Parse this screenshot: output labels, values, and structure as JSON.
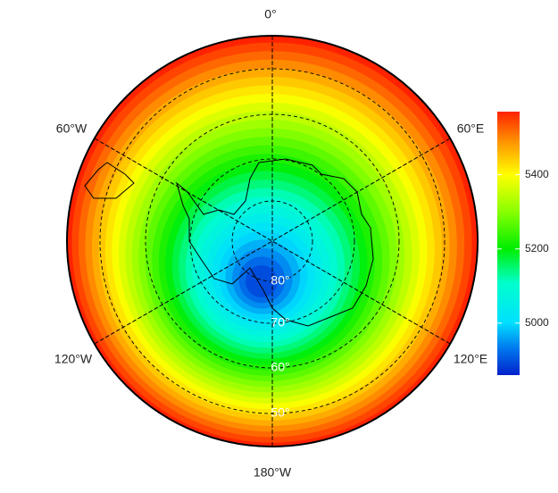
{
  "map": {
    "meridian_labels": [
      "0°",
      "60°E",
      "120°E",
      "180°W",
      "120°W",
      "60°W"
    ],
    "latitude_labels": [
      "80°",
      "70°",
      "60°",
      "50°"
    ],
    "colorbar": {
      "lim": [
        4860,
        5570
      ],
      "ticks": [
        5000,
        5200,
        5400
      ]
    }
  }
}
